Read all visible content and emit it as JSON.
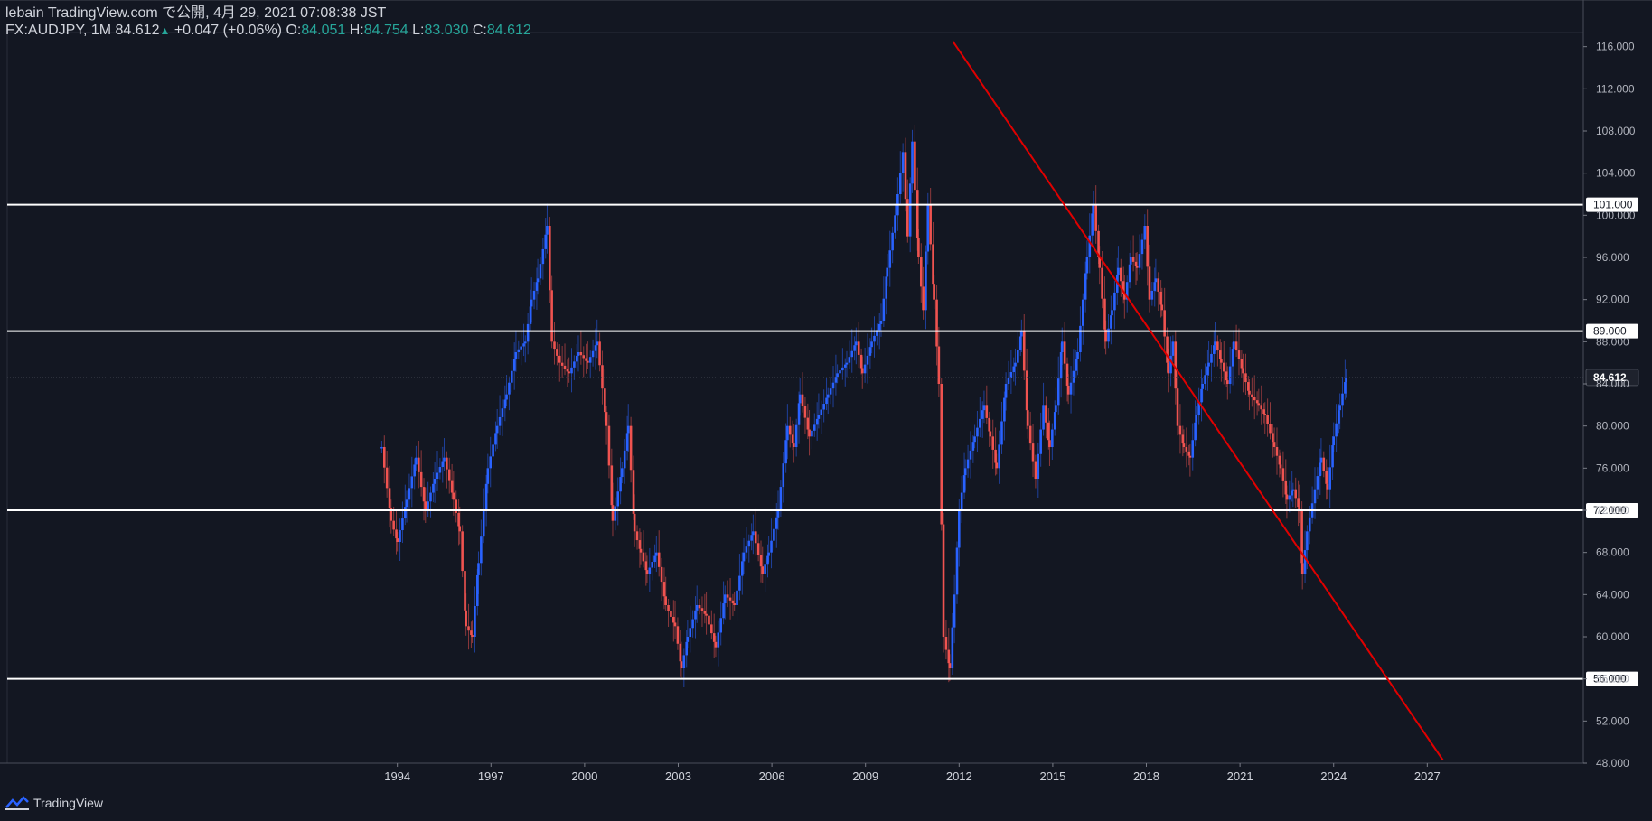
{
  "header": {
    "line1": "lebain TradingView.com で公開, 4月 29, 2021 07:08:38 JST",
    "symbol": "FX:AUDJPY, 1M",
    "last": "84.612",
    "arrow": "▲",
    "change": "+0.047 (+0.06%)",
    "o_label": "O:",
    "o_value": "84.051",
    "h_label": "H:",
    "h_value": "84.754",
    "l_label": "L:",
    "l_value": "83.030",
    "c_label": "C:",
    "c_value": "84.612"
  },
  "footer": {
    "brand": "TradingView",
    "logo_icon": "tradingview-logo-icon"
  },
  "colors": {
    "background": "#131722",
    "up": "#2962ff",
    "down": "#ef5350",
    "trendline": "#e00000",
    "hline": "#ffffff",
    "text": "#d1d4dc"
  },
  "chart_data": {
    "type": "candlestick",
    "symbol": "AUDJPY",
    "timeframe": "1M",
    "ylim": [
      48,
      117
    ],
    "xlim": [
      1981.5,
      2032.0
    ],
    "y_ticks": [
      "48.000",
      "52.000",
      "56.000",
      "60.000",
      "64.000",
      "68.000",
      "72.000",
      "76.000",
      "80.000",
      "84.000",
      "88.000",
      "92.000",
      "96.000",
      "100.000",
      "104.000",
      "108.000",
      "112.000",
      "116.000"
    ],
    "x_ticks": [
      "1994",
      "1997",
      "2000",
      "2003",
      "2006",
      "2009",
      "2012",
      "2015",
      "2018",
      "2021",
      "2024",
      "2027"
    ],
    "horizontal_levels": [
      {
        "price": 101,
        "label": "101.000"
      },
      {
        "price": 89,
        "label": "89.000"
      },
      {
        "price": 72,
        "label": "72.000"
      },
      {
        "price": 56,
        "label": "56.000"
      }
    ],
    "last_price_label": "84.612",
    "last_price": 84.612,
    "trendline": {
      "x1": 2011.8,
      "y1": 116.5,
      "x2": 2027.5,
      "y2": 48.3
    },
    "price_path": [
      [
        1993.5,
        78
      ],
      [
        1993.8,
        71
      ],
      [
        1994.0,
        69
      ],
      [
        1994.3,
        73
      ],
      [
        1994.6,
        77
      ],
      [
        1994.9,
        72
      ],
      [
        1995.2,
        75
      ],
      [
        1995.5,
        77
      ],
      [
        1995.8,
        73
      ],
      [
        1996.0,
        70
      ],
      [
        1996.2,
        61
      ],
      [
        1996.4,
        60
      ],
      [
        1996.6,
        67
      ],
      [
        1996.9,
        76
      ],
      [
        1997.2,
        80
      ],
      [
        1997.5,
        83
      ],
      [
        1997.8,
        87
      ],
      [
        1998.1,
        88
      ],
      [
        1998.3,
        92
      ],
      [
        1998.5,
        94
      ],
      [
        1998.8,
        99
      ],
      [
        1998.95,
        88
      ],
      [
        1999.2,
        86
      ],
      [
        1999.5,
        85
      ],
      [
        1999.8,
        87
      ],
      [
        2000.1,
        86
      ],
      [
        2000.4,
        88
      ],
      [
        2000.7,
        80
      ],
      [
        2000.9,
        71
      ],
      [
        2001.2,
        76
      ],
      [
        2001.4,
        80
      ],
      [
        2001.6,
        70
      ],
      [
        2001.8,
        68
      ],
      [
        2002.0,
        66
      ],
      [
        2002.3,
        68
      ],
      [
        2002.6,
        63
      ],
      [
        2002.9,
        61
      ],
      [
        2003.1,
        57
      ],
      [
        2003.3,
        60
      ],
      [
        2003.6,
        63
      ],
      [
        2003.9,
        62
      ],
      [
        2004.2,
        59
      ],
      [
        2004.5,
        64
      ],
      [
        2004.8,
        63
      ],
      [
        2005.1,
        68
      ],
      [
        2005.4,
        70
      ],
      [
        2005.7,
        66
      ],
      [
        2005.9,
        68
      ],
      [
        2006.2,
        72
      ],
      [
        2006.5,
        80
      ],
      [
        2006.7,
        78
      ],
      [
        2006.9,
        83
      ],
      [
        2007.2,
        79
      ],
      [
        2007.5,
        81
      ],
      [
        2007.8,
        83
      ],
      [
        2008.1,
        85
      ],
      [
        2008.4,
        86
      ],
      [
        2008.7,
        88
      ],
      [
        2008.9,
        85
      ],
      [
        2009.2,
        88
      ],
      [
        2009.5,
        90
      ],
      [
        2009.7,
        95
      ],
      [
        2009.95,
        100
      ],
      [
        2010.2,
        106
      ],
      [
        2010.35,
        98
      ],
      [
        2010.5,
        107
      ],
      [
        2010.7,
        96
      ],
      [
        2010.85,
        91
      ],
      [
        2011.0,
        101
      ],
      [
        2011.2,
        92
      ],
      [
        2011.35,
        84
      ],
      [
        2011.5,
        60
      ],
      [
        2011.7,
        57
      ],
      [
        2011.85,
        64
      ],
      [
        2012.0,
        72
      ],
      [
        2012.2,
        76
      ],
      [
        2012.5,
        79
      ],
      [
        2012.8,
        82
      ],
      [
        2013.0,
        79
      ],
      [
        2013.2,
        76
      ],
      [
        2013.5,
        84
      ],
      [
        2013.8,
        86
      ],
      [
        2014.0,
        89
      ],
      [
        2014.2,
        80
      ],
      [
        2014.45,
        75
      ],
      [
        2014.7,
        82
      ],
      [
        2014.9,
        78
      ],
      [
        2015.1,
        82
      ],
      [
        2015.3,
        88
      ],
      [
        2015.5,
        83
      ],
      [
        2015.8,
        87
      ],
      [
        2016.1,
        96
      ],
      [
        2016.3,
        101
      ],
      [
        2016.5,
        95
      ],
      [
        2016.7,
        88
      ],
      [
        2016.9,
        91
      ],
      [
        2017.1,
        95
      ],
      [
        2017.3,
        92
      ],
      [
        2017.5,
        96
      ],
      [
        2017.7,
        95
      ],
      [
        2017.95,
        99
      ],
      [
        2018.1,
        92
      ],
      [
        2018.3,
        94
      ],
      [
        2018.5,
        91
      ],
      [
        2018.7,
        85
      ],
      [
        2018.85,
        88
      ],
      [
        2019.0,
        80
      ],
      [
        2019.2,
        78
      ],
      [
        2019.4,
        77
      ],
      [
        2019.6,
        81
      ],
      [
        2019.8,
        84
      ],
      [
        2020.0,
        86
      ],
      [
        2020.2,
        88
      ],
      [
        2020.4,
        86
      ],
      [
        2020.6,
        84
      ],
      [
        2020.8,
        88
      ],
      [
        2021.1,
        85
      ],
      [
        2021.3,
        83
      ],
      [
        2021.6,
        82
      ],
      [
        2021.8,
        81
      ],
      [
        2022.1,
        78
      ],
      [
        2022.3,
        76
      ],
      [
        2022.5,
        73
      ],
      [
        2022.7,
        74
      ],
      [
        2022.9,
        72
      ],
      [
        2023.0,
        66
      ],
      [
        2023.15,
        70
      ],
      [
        2023.4,
        74
      ],
      [
        2023.6,
        77
      ],
      [
        2023.8,
        74
      ],
      [
        2024.0,
        79
      ],
      [
        2024.2,
        82
      ],
      [
        2024.4,
        84.6
      ]
    ]
  }
}
